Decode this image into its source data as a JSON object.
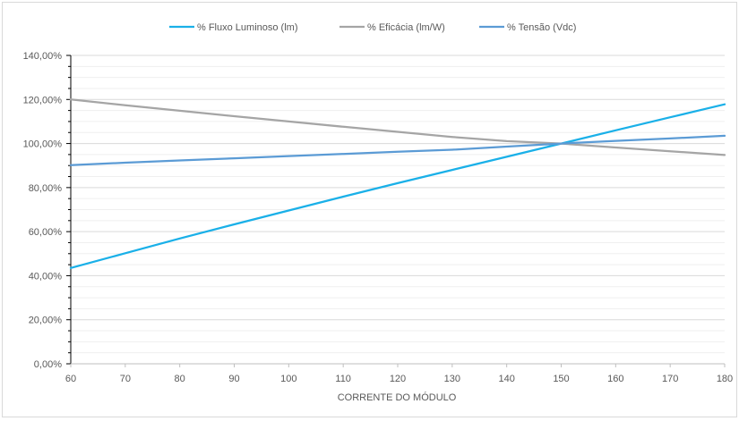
{
  "chart_data": {
    "type": "line",
    "title": "",
    "xlabel": "CORRENTE DO MÓDULO",
    "ylabel": "",
    "x": [
      60,
      70,
      80,
      90,
      100,
      110,
      120,
      130,
      140,
      150,
      160,
      170,
      180
    ],
    "xlim": [
      60,
      180
    ],
    "ylim": [
      0,
      140
    ],
    "x_ticks": [
      "60",
      "70",
      "80",
      "90",
      "100",
      "110",
      "120",
      "130",
      "140",
      "150",
      "160",
      "170",
      "180"
    ],
    "y_ticks": [
      "0,00%",
      "20,00%",
      "40,00%",
      "60,00%",
      "80,00%",
      "100,00%",
      "120,00%",
      "140,00%"
    ],
    "y_tick_values": [
      0,
      20,
      40,
      60,
      80,
      100,
      120,
      140
    ],
    "grid": true,
    "legend_position": "top",
    "series": [
      {
        "name": "% Fluxo Luminoso (lm)",
        "color": "#1ab0e8",
        "values": [
          43.5,
          50.2,
          56.9,
          63.3,
          69.6,
          75.9,
          82.0,
          88.0,
          94.0,
          100.0,
          106.0,
          111.9,
          117.8
        ]
      },
      {
        "name": "% Eficácia (lm/W)",
        "color": "#a5a5a5",
        "values": [
          120.0,
          117.4,
          114.9,
          112.4,
          110.0,
          107.6,
          105.3,
          103.0,
          101.1,
          100.0,
          98.2,
          96.5,
          94.8
        ]
      },
      {
        "name": "% Tensão (Vdc)",
        "color": "#5b9bd5",
        "values": [
          90.2,
          91.3,
          92.3,
          93.3,
          94.3,
          95.3,
          96.3,
          97.2,
          98.6,
          100.0,
          101.2,
          102.3,
          103.5
        ]
      }
    ]
  }
}
